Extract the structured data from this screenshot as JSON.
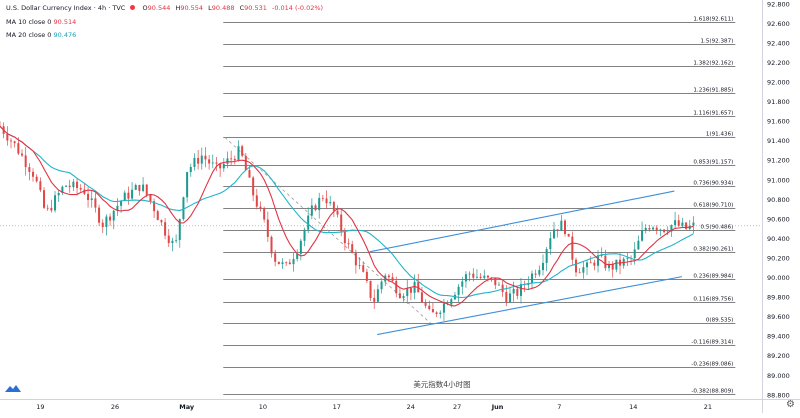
{
  "header": {
    "symbol": "U.S. Dollar Currency Index",
    "interval": "4h",
    "source": "TVC",
    "open_label": "O",
    "open": "90.544",
    "high_label": "H",
    "high": "90.554",
    "low_label": "L",
    "low": "90.488",
    "close_label": "C",
    "close": "90.531",
    "change": "-0.014 (-0.02%)",
    "ma10_label": "MA 10 close 0",
    "ma10_value": "90.514",
    "ma20_label": "MA 20 close 0",
    "ma20_value": "90.476"
  },
  "colors": {
    "up": "#1f9a8f",
    "down": "#e04848",
    "ma10": "#e23344",
    "ma20": "#22b5c9",
    "channel": "#3d8fd9",
    "fib": "#585858",
    "projection": "#9a9a9a",
    "axis_text": "#131722"
  },
  "icons": {
    "logo": "tradingview-logo-icon",
    "settings": "gear-icon"
  },
  "chart_data": {
    "type": "candlestick",
    "title": "美元指数4小时图",
    "xlabel": "",
    "ylabel": "",
    "ylim": [
      88.8,
      92.8
    ],
    "grid": false,
    "legend": "top-left",
    "y_ticks": [
      "92.800",
      "92.600",
      "92.400",
      "92.200",
      "92.000",
      "91.800",
      "91.600",
      "91.400",
      "91.200",
      "91.000",
      "90.800",
      "90.600",
      "90.400",
      "90.200",
      "90.000",
      "89.800",
      "89.600",
      "89.400",
      "89.200",
      "89.000",
      "88.800"
    ],
    "x_ticks": [
      {
        "label": "19",
        "pos": 0.053
      },
      {
        "label": "26",
        "pos": 0.151
      },
      {
        "label": "May",
        "pos": 0.245,
        "bold": true
      },
      {
        "label": "10",
        "pos": 0.345
      },
      {
        "label": "17",
        "pos": 0.442
      },
      {
        "label": "24",
        "pos": 0.539
      },
      {
        "label": "27",
        "pos": 0.6
      },
      {
        "label": "Jun",
        "pos": 0.653,
        "bold": true
      },
      {
        "label": "7",
        "pos": 0.734
      },
      {
        "label": "14",
        "pos": 0.831
      },
      {
        "label": "21",
        "pos": 0.929
      }
    ],
    "current_price": 90.531,
    "fib_retracement": {
      "x_start": 0.293,
      "x_end": 0.965,
      "levels": [
        {
          "ratio": "1.618",
          "price": "92.611"
        },
        {
          "ratio": "1.5",
          "price": "92.387"
        },
        {
          "ratio": "1.382",
          "price": "92.162"
        },
        {
          "ratio": "1.236",
          "price": "91.885"
        },
        {
          "ratio": "1.116",
          "price": "91.657"
        },
        {
          "ratio": "1",
          "price": "91.436"
        },
        {
          "ratio": "0.853",
          "price": "91.157"
        },
        {
          "ratio": "0.736",
          "price": "90.934"
        },
        {
          "ratio": "0.618",
          "price": "90.710"
        },
        {
          "ratio": "0.5",
          "price": "90.486"
        },
        {
          "ratio": "0.382",
          "price": "90.261"
        },
        {
          "ratio": "0.236",
          "price": "89.984"
        },
        {
          "ratio": "0.116",
          "price": "89.756"
        },
        {
          "ratio": "0",
          "price": "89.535"
        },
        {
          "ratio": "-0.116",
          "price": "89.314"
        },
        {
          "ratio": "-0.236",
          "price": "89.086"
        },
        {
          "ratio": "-0.382",
          "price": "88.809"
        }
      ]
    },
    "channel_lines": [
      {
        "name": "upper",
        "x": [
          0.485,
          0.885
        ],
        "y": [
          90.265,
          90.886
        ]
      },
      {
        "name": "lower",
        "x": [
          0.495,
          0.895
        ],
        "y": [
          89.418,
          90.011
        ]
      }
    ],
    "projection_line": {
      "x": [
        0.295,
        0.565
      ],
      "y": [
        91.436,
        89.535
      ]
    },
    "price_path": [
      [
        0.0,
        91.55
      ],
      [
        0.02,
        91.35
      ],
      [
        0.045,
        91.05
      ],
      [
        0.06,
        90.65
      ],
      [
        0.085,
        90.95
      ],
      [
        0.11,
        90.9
      ],
      [
        0.135,
        90.55
      ],
      [
        0.16,
        90.8
      ],
      [
        0.185,
        90.95
      ],
      [
        0.2,
        90.75
      ],
      [
        0.215,
        90.5
      ],
      [
        0.23,
        90.3
      ],
      [
        0.245,
        91.1
      ],
      [
        0.265,
        91.25
      ],
      [
        0.285,
        91.1
      ],
      [
        0.3,
        91.2
      ],
      [
        0.315,
        91.3
      ],
      [
        0.33,
        90.9
      ],
      [
        0.345,
        90.6
      ],
      [
        0.36,
        90.2
      ],
      [
        0.375,
        90.1
      ],
      [
        0.39,
        90.3
      ],
      [
        0.41,
        90.7
      ],
      [
        0.425,
        90.85
      ],
      [
        0.44,
        90.65
      ],
      [
        0.455,
        90.35
      ],
      [
        0.475,
        90.05
      ],
      [
        0.49,
        89.75
      ],
      [
        0.505,
        90.05
      ],
      [
        0.525,
        89.85
      ],
      [
        0.545,
        89.9
      ],
      [
        0.565,
        89.6
      ],
      [
        0.585,
        89.75
      ],
      [
        0.6,
        89.9
      ],
      [
        0.615,
        90.05
      ],
      [
        0.63,
        90.0
      ],
      [
        0.65,
        89.95
      ],
      [
        0.665,
        89.8
      ],
      [
        0.68,
        89.85
      ],
      [
        0.695,
        90.0
      ],
      [
        0.71,
        90.15
      ],
      [
        0.725,
        90.5
      ],
      [
        0.74,
        90.55
      ],
      [
        0.755,
        90.1
      ],
      [
        0.77,
        90.1
      ],
      [
        0.785,
        90.2
      ],
      [
        0.8,
        90.1
      ],
      [
        0.815,
        90.15
      ],
      [
        0.83,
        90.2
      ],
      [
        0.845,
        90.5
      ],
      [
        0.855,
        90.55
      ],
      [
        0.87,
        90.5
      ],
      [
        0.885,
        90.55
      ],
      [
        0.9,
        90.5
      ],
      [
        0.91,
        90.53
      ]
    ],
    "candle_count": 190
  }
}
